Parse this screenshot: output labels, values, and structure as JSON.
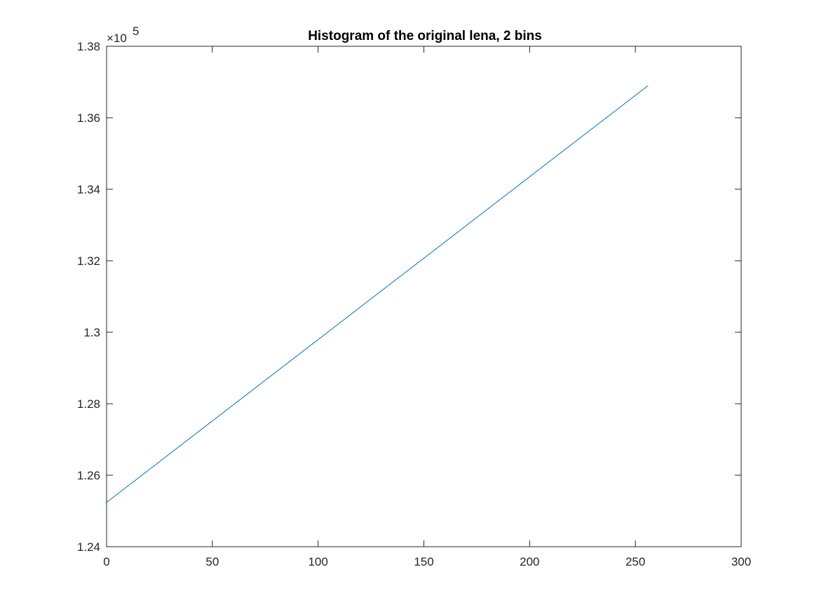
{
  "chart_data": {
    "type": "line",
    "title": "Histogram of the original lena, 2 bins",
    "xlabel": "",
    "ylabel": "",
    "xlim": [
      0,
      300
    ],
    "ylim": [
      124000,
      138000
    ],
    "x_ticks": [
      0,
      50,
      100,
      150,
      200,
      250,
      300
    ],
    "x_tick_labels": [
      "0",
      "50",
      "100",
      "150",
      "200",
      "250",
      "300"
    ],
    "y_ticks": [
      124000,
      126000,
      128000,
      130000,
      132000,
      134000,
      136000,
      138000
    ],
    "y_tick_labels": [
      "1.24",
      "1.26",
      "1.28",
      "1.3",
      "1.32",
      "1.34",
      "1.36",
      "1.38"
    ],
    "y_exponent_base": "×10",
    "y_exponent_power": "5",
    "grid": false,
    "series": [
      {
        "color": "#0072BD",
        "x": [
          0,
          256
        ],
        "values": [
          125240,
          136900
        ]
      }
    ]
  }
}
